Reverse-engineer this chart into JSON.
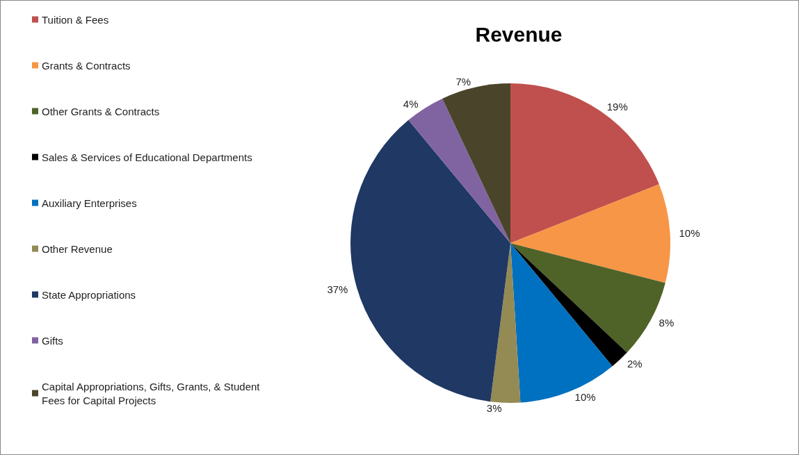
{
  "chart_data": {
    "type": "pie",
    "title": "Revenue",
    "categories": [
      "Tuition & Fees",
      "Grants & Contracts",
      "Other Grants & Contracts",
      "Sales & Services of Educational Departments",
      "Auxiliary Enterprises",
      "Other Revenue",
      "State Appropriations",
      "Gifts",
      "Capital Appropriations, Gifts, Grants, & Student Fees for Capital Projects"
    ],
    "values": [
      19,
      10,
      8,
      2,
      10,
      3,
      37,
      4,
      7
    ],
    "value_labels": [
      "19%",
      "10%",
      "8%",
      "2%",
      "10%",
      "3%",
      "37%",
      "4%",
      "7%"
    ],
    "colors": [
      "#c0504d",
      "#f79646",
      "#4f6228",
      "#000000",
      "#0070c0",
      "#948a54",
      "#1f3864",
      "#8064a2",
      "#4a452a"
    ],
    "legend": "left"
  }
}
